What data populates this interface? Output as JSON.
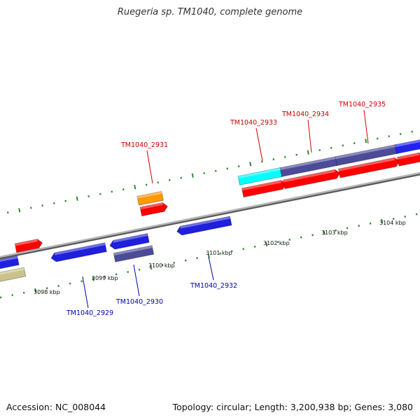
{
  "title": "Ruegeria sp. TM1040, complete genome",
  "footer": {
    "accession": "Accession: NC_008044",
    "summary": "Topology: circular; Length: 3,200,938 bp; Genes: 3,080"
  },
  "colors": {
    "backbone": "#8a8a8a",
    "tick": "#2e8b2e",
    "plus_strand_label": "#cc0000",
    "minus_strand_label": "#0000bb"
  },
  "axis_labels": [
    {
      "id": "3098",
      "text": "3098 kbp"
    },
    {
      "id": "3099",
      "text": "3099 kbp"
    },
    {
      "id": "3100",
      "text": "3100 kbp"
    },
    {
      "id": "3101",
      "text": "3101 kbp"
    },
    {
      "id": "3102",
      "text": "3102 kbp"
    },
    {
      "id": "3103",
      "text": "3103 kbp"
    },
    {
      "id": "3104",
      "text": "3104 kbp"
    }
  ],
  "gene_labels": [
    {
      "id": "TM1040_2929",
      "text": "TM1040_2929",
      "strand": "minus"
    },
    {
      "id": "TM1040_2930",
      "text": "TM1040_2930",
      "strand": "minus"
    },
    {
      "id": "TM1040_2931",
      "text": "TM1040_2931",
      "strand": "plus"
    },
    {
      "id": "TM1040_2932",
      "text": "TM1040_2932",
      "strand": "minus"
    },
    {
      "id": "TM1040_2933",
      "text": "TM1040_2933",
      "strand": "plus"
    },
    {
      "id": "TM1040_2934",
      "text": "TM1040_2934",
      "strand": "plus"
    },
    {
      "id": "TM1040_2935",
      "text": "TM1040_2935",
      "strand": "plus"
    }
  ]
}
